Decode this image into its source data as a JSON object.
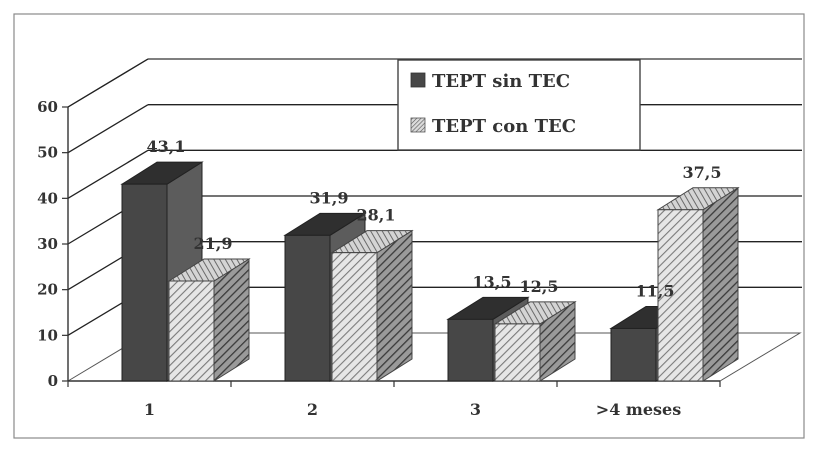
{
  "chart_data": {
    "type": "bar",
    "style": "3d-clustered",
    "categories": [
      "1",
      "2",
      "3",
      ">4 meses"
    ],
    "series": [
      {
        "name": "TEPT sin TEC",
        "values": [
          43.1,
          31.9,
          13.5,
          11.5
        ],
        "labels": [
          "43,1",
          "31,9",
          "13,5",
          "11,5"
        ],
        "color": "#474747",
        "pattern": "solid"
      },
      {
        "name": "TEPT con TEC",
        "values": [
          21.9,
          28.1,
          12.5,
          37.5
        ],
        "labels": [
          "21,9",
          "28,1",
          "12,5",
          "37,5"
        ],
        "color": "#c9c9c9",
        "pattern": "diagonal-hatch"
      }
    ],
    "y_ticks": [
      "0",
      "10",
      "20",
      "30",
      "40",
      "50",
      "60"
    ],
    "ylim": [
      0,
      60
    ],
    "grid": true,
    "legend_position": "top-right"
  }
}
